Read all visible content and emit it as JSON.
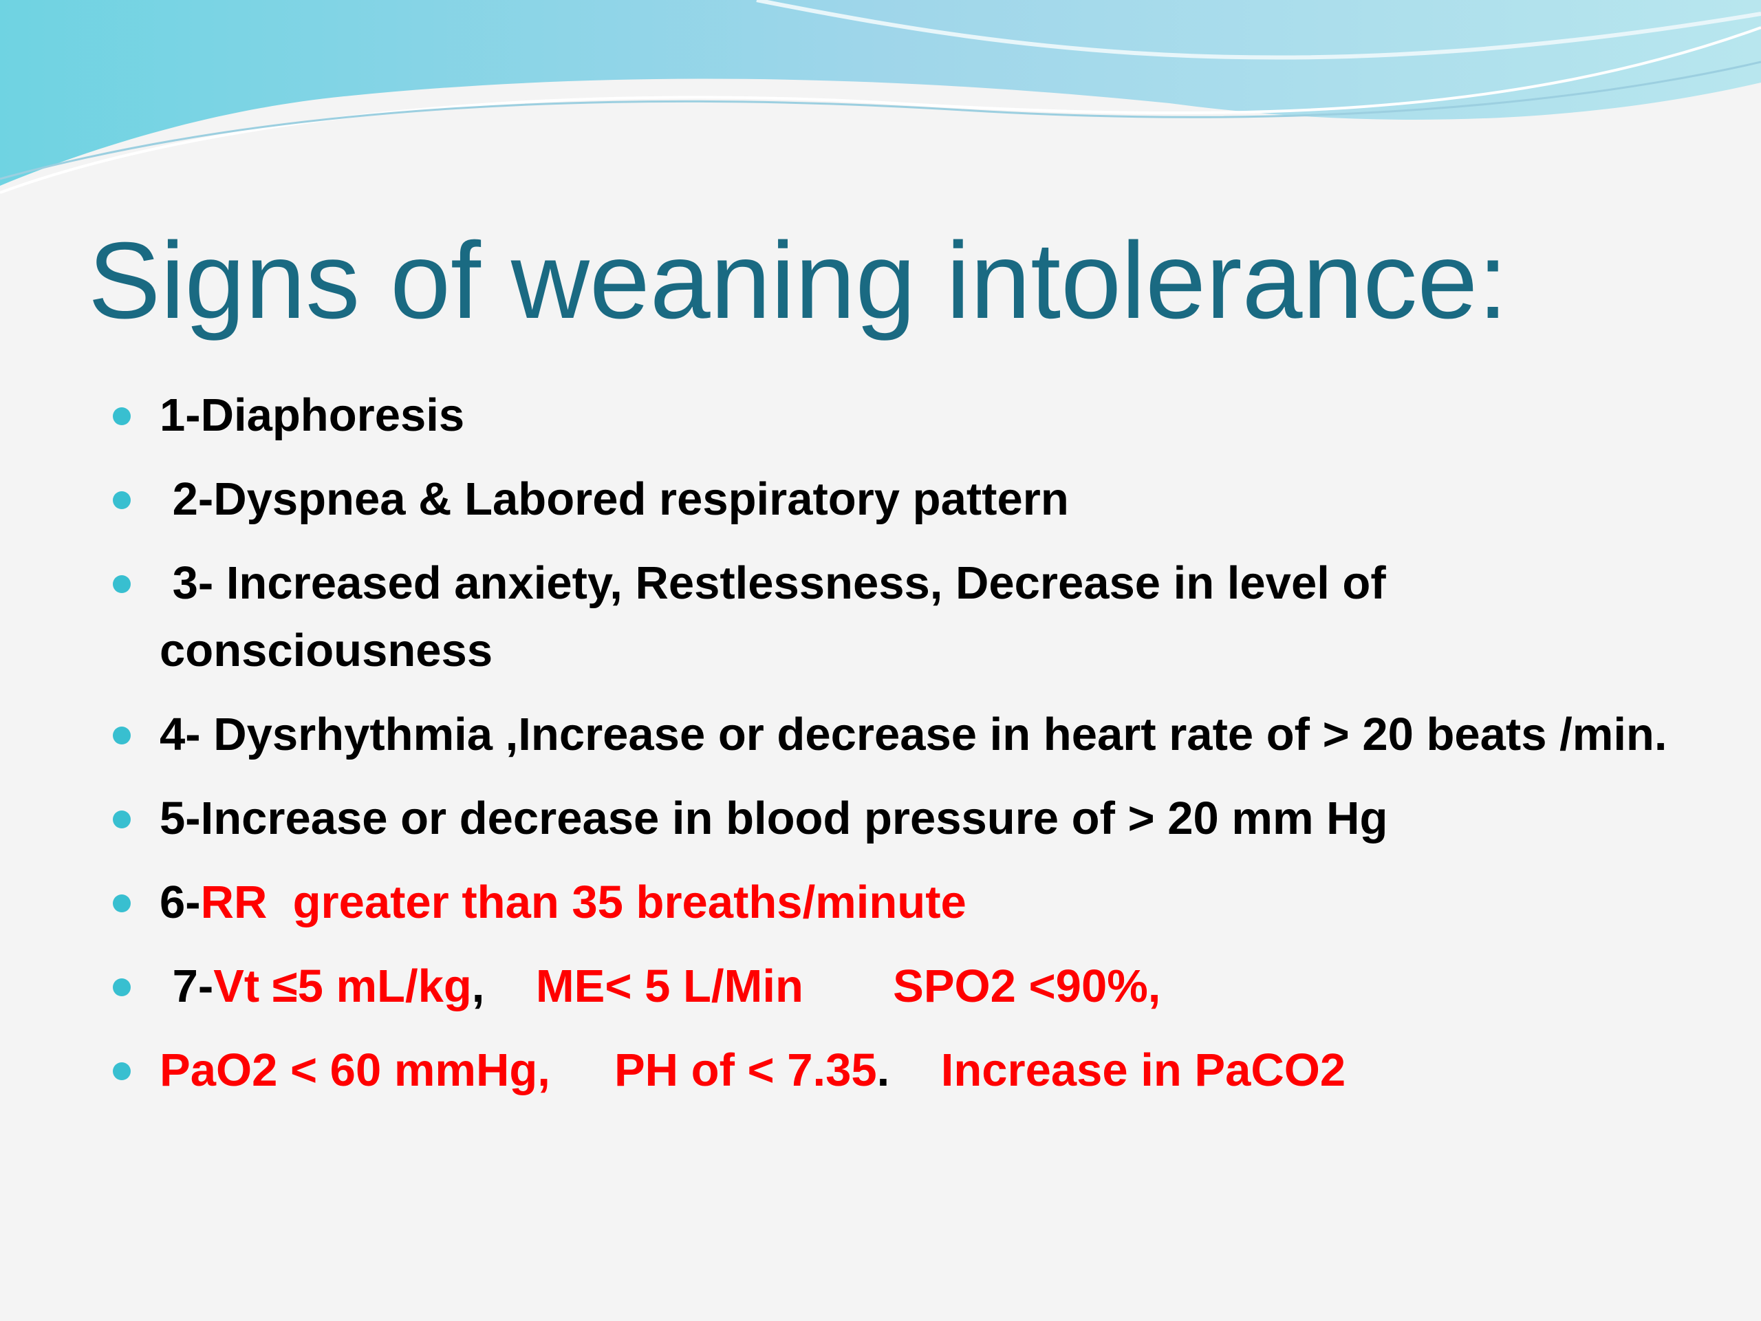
{
  "title": "Signs of weaning intolerance:",
  "items": [
    {
      "runs": [
        {
          "text": "1-Diaphoresis",
          "color": "#000000"
        }
      ]
    },
    {
      "runs": [
        {
          "text": " 2-Dyspnea & Labored respiratory pattern",
          "color": "#000000"
        }
      ]
    },
    {
      "runs": [
        {
          "text": " 3- Increased anxiety, Restlessness, Decrease in level of consciousness",
          "color": "#000000"
        }
      ]
    },
    {
      "runs": [
        {
          "text": "4- Dysrhythmia ,Increase or decrease in heart rate of > 20 beats /min.",
          "color": "#000000"
        }
      ]
    },
    {
      "runs": [
        {
          "text": "5-Increase or decrease in blood pressure of > 20 mm Hg",
          "color": "#000000"
        }
      ]
    },
    {
      "runs": [
        {
          "text": "6-",
          "color": "#000000"
        },
        {
          "text": "RR  greater than 35 breaths/minute",
          "color": "#ff0000"
        }
      ]
    },
    {
      "runs": [
        {
          "text": " 7-",
          "color": "#000000"
        },
        {
          "text": "Vt ≤5 mL/kg",
          "color": "#ff0000"
        },
        {
          "text": ",",
          "color": "#000000"
        },
        {
          "text": "    ME< 5 L/Min       SPO2 <90%,",
          "color": "#ff0000"
        }
      ]
    },
    {
      "runs": [
        {
          "text": "PaO2 < 60 mmHg,     PH of < 7.35",
          "color": "#ff0000"
        },
        {
          "text": ".",
          "color": "#000000"
        },
        {
          "text": "    Increase in PaCO2",
          "color": "#ff0000"
        }
      ]
    }
  ]
}
